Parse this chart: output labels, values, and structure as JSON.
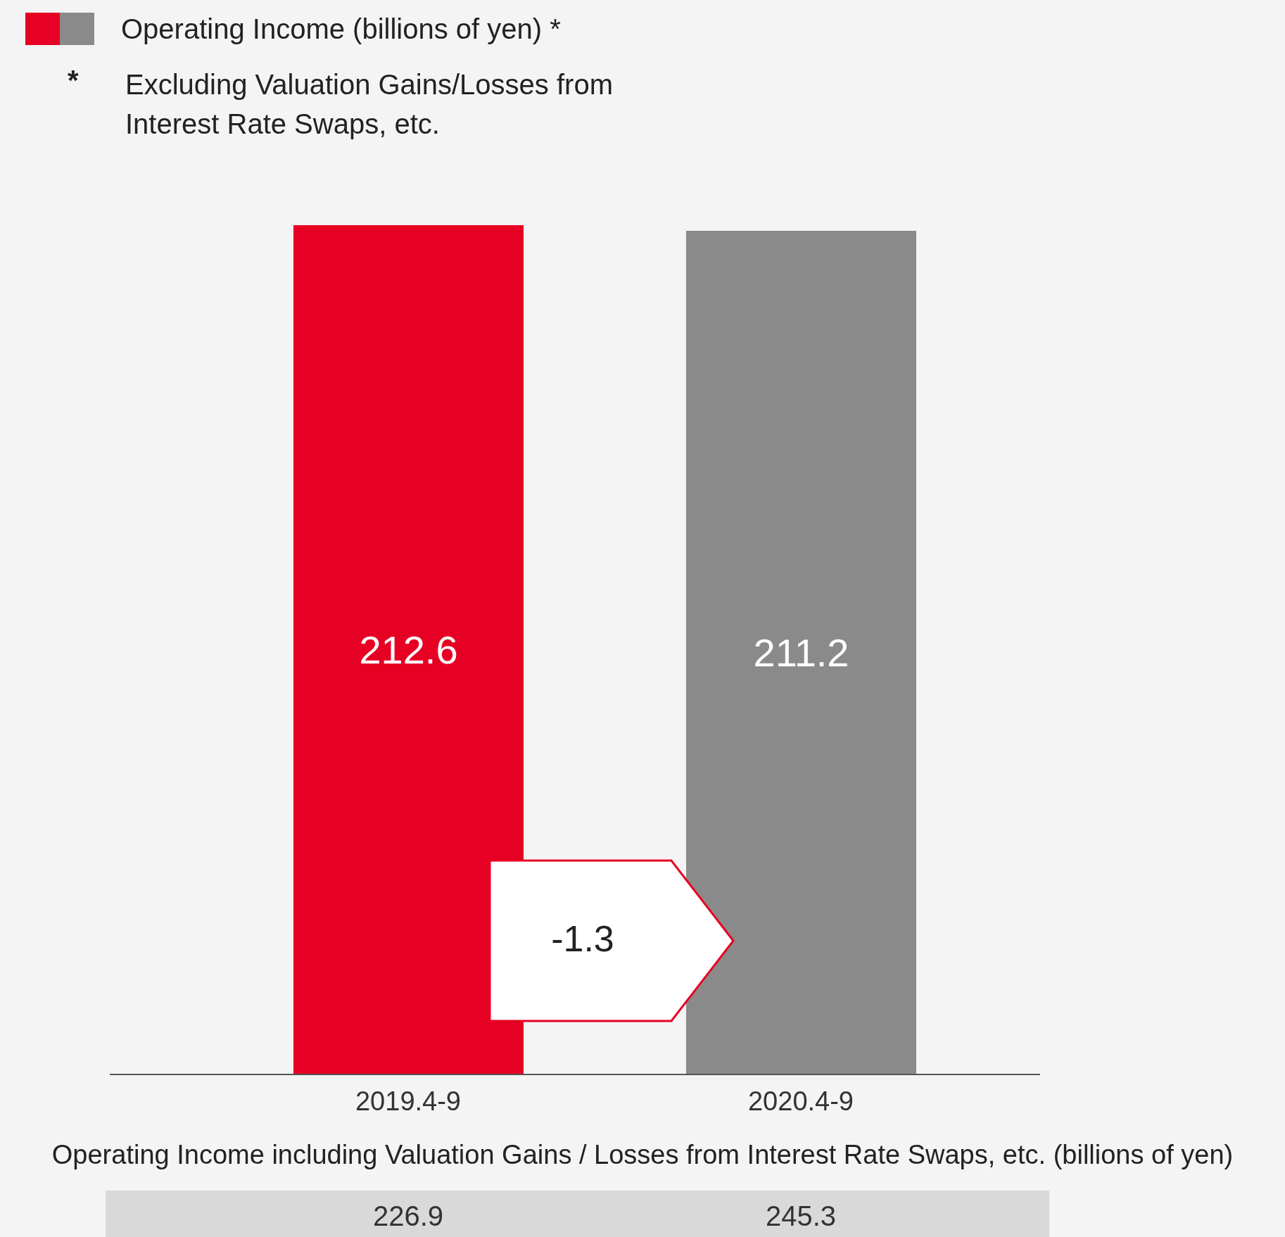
{
  "chart_data": {
    "type": "bar",
    "categories": [
      "2019.4-9",
      "2020.4-9"
    ],
    "series": [
      {
        "name": "Operating Income (billions of yen) *",
        "colors": [
          "#e60023",
          "#8a8a8a"
        ],
        "values": [
          212.6,
          211.2
        ]
      }
    ],
    "data_labels": true,
    "legend": "top left",
    "grid": false,
    "annotations": [
      "* Excluding Valuation Gains/Losses from Interest Rate Swaps, etc.",
      "-1.3",
      "Operating Income including Valuation Gains / Losses from Interest Rate Swaps, etc. (billions of yen)",
      "226.9",
      "245.3"
    ]
  }
}
